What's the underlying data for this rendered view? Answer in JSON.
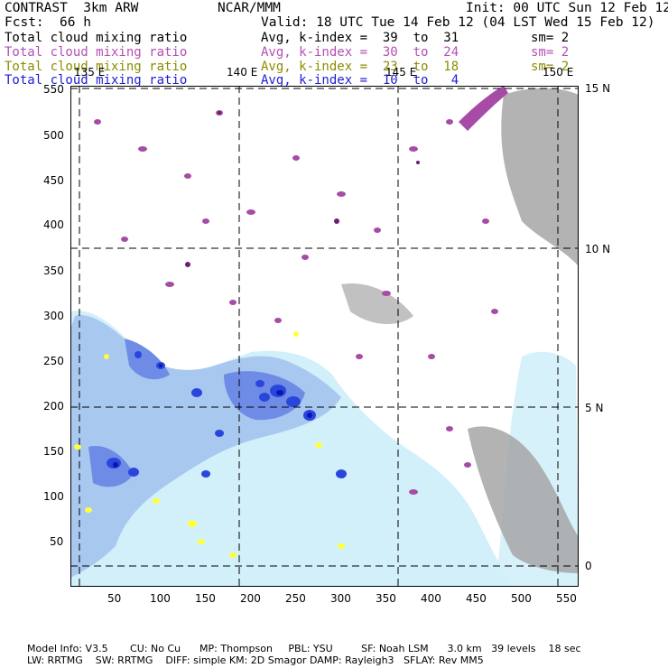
{
  "header": {
    "model": "CONTRAST  3km ARW",
    "org": "NCAR/MMM",
    "init": "Init: 00 UTC Sun 12 Feb 12",
    "fcst_label": "Fcst:",
    "fcst_value": "66 h",
    "valid": "Valid: 18 UTC Tue 14 Feb 12 (04 LST Wed 15 Feb 12)"
  },
  "legend": [
    {
      "name": "Total cloud mixing ratio",
      "range": "Avg, k-index =  39  to  31",
      "sm": "sm= 2",
      "color": "#000000"
    },
    {
      "name": "Total cloud mixing ratio",
      "range": "Avg, k-index =  30  to  24",
      "sm": "sm= 2",
      "color": "#b44fb4"
    },
    {
      "name": "Total cloud mixing ratio",
      "range": "Avg, k-index =  23  to  18",
      "sm": "sm= 2",
      "color": "#8c8c00"
    },
    {
      "name": "Total cloud mixing ratio",
      "range": "Avg, k-index =  10  to   4",
      "sm": "",
      "color": "#1e1ed2"
    }
  ],
  "map": {
    "lon_labels": [
      "135 E",
      "140 E",
      "145 E",
      "150 E"
    ],
    "lat_labels": [
      "15 N",
      "10 N",
      "5 N",
      "0"
    ],
    "x_ticks": [
      "50",
      "100",
      "150",
      "200",
      "250",
      "300",
      "350",
      "400",
      "450",
      "500",
      "550"
    ],
    "y_ticks": [
      "550",
      "500",
      "450",
      "400",
      "350",
      "300",
      "250",
      "200",
      "150",
      "100",
      "50"
    ],
    "colors": {
      "gray": "#a6a6a6",
      "purple": "#a64ca6",
      "dark_purple": "#6e1e6e",
      "yellow": "#ffff3c",
      "light_cyan": "#d2f0fa",
      "light_blue": "#a8c8f0",
      "mid_blue": "#6e8ce6",
      "blue": "#2846dc",
      "dark_blue": "#0a14b4"
    }
  },
  "footer": {
    "line1": "Model Info: V3.5       CU: No Cu      MP: Thompson     PBL: YSU         SF: Noah LSM      3.0 km   39 levels    18 sec",
    "line2": "LW: RRTMG    SW: RRTMG    DIFF: simple KM: 2D Smagor DAMP: Rayleigh3   SFLAY: Rev MM5"
  }
}
